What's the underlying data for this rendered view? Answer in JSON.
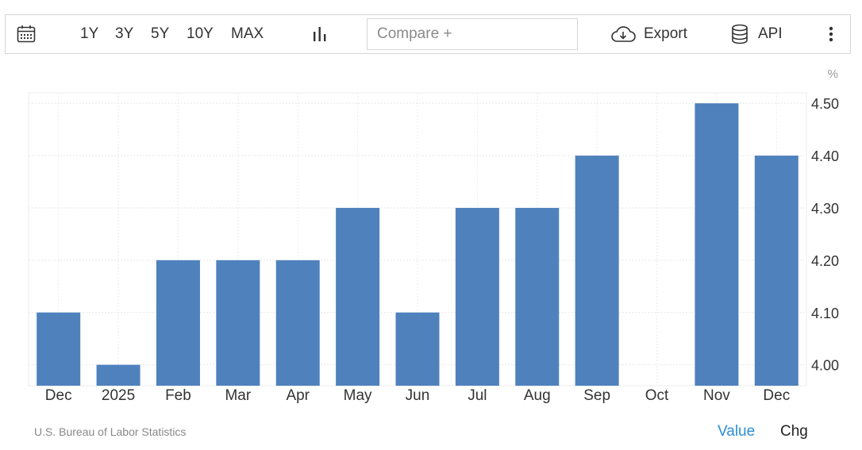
{
  "toolbar": {
    "icons": {
      "calendar": "calendar-icon",
      "chart_type": "bar-chart-icon",
      "export": "cloud-download-icon",
      "api": "database-icon",
      "more": "more-vertical-icon"
    },
    "ranges": [
      "1Y",
      "3Y",
      "5Y",
      "10Y",
      "MAX"
    ],
    "compare_placeholder": "Compare +",
    "export_label": "Export",
    "api_label": "API"
  },
  "footer": {
    "source": "U.S. Bureau of Labor Statistics",
    "value_label": "Value",
    "chg_label": "Chg",
    "active_color": "#2a8fd6"
  },
  "chart_data": {
    "type": "bar",
    "unit": "%",
    "categories": [
      "Dec",
      "2025",
      "Feb",
      "Mar",
      "Apr",
      "May",
      "Jun",
      "Jul",
      "Aug",
      "Sep",
      "Oct",
      "Nov",
      "Dec"
    ],
    "values": [
      4.1,
      4.0,
      4.2,
      4.2,
      4.2,
      4.3,
      4.1,
      4.3,
      4.3,
      4.4,
      null,
      4.5,
      4.4
    ],
    "ylim": [
      3.96,
      4.52
    ],
    "yticks": [
      "4.00",
      "4.10",
      "4.20",
      "4.30",
      "4.40",
      "4.50"
    ],
    "grid": true,
    "bar_color": "#4f81bd"
  }
}
